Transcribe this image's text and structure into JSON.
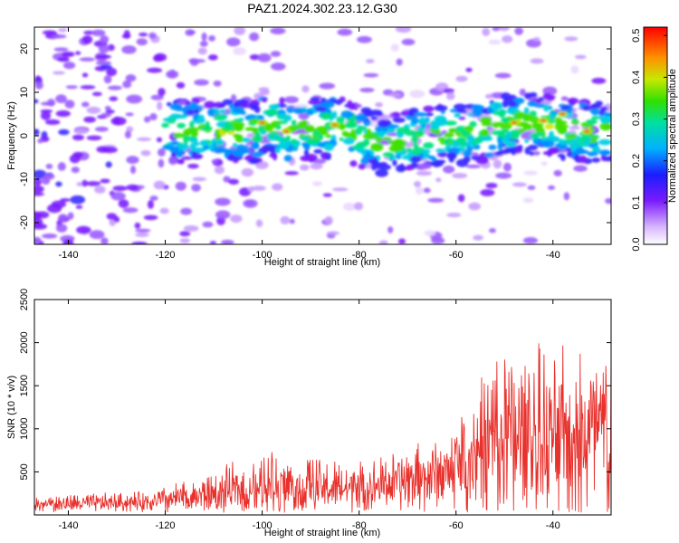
{
  "title": "PAZ1.2024.302.23.12.G30",
  "chart_data": [
    {
      "type": "heatmap",
      "xlabel": "Height of straight line (km)",
      "ylabel": "Frequency (Hz)",
      "xlim": [
        -147,
        -28
      ],
      "ylim": [
        -25,
        25
      ],
      "xticks": [
        -140,
        -120,
        -100,
        -80,
        -60,
        -40
      ],
      "yticks": [
        20,
        10,
        0,
        -10,
        -20
      ],
      "colorbar": {
        "label": "Normalized spectral amplitude",
        "range": [
          0.0,
          0.52
        ],
        "ticks": [
          0.5,
          0.4,
          0.3,
          0.2,
          0.1,
          0.0
        ]
      },
      "description_points": [
        {
          "x": -100,
          "y": 3
        },
        {
          "x": -95,
          "y": 1
        },
        {
          "x": -85,
          "y": 2
        },
        {
          "x": -75,
          "y": -2
        },
        {
          "x": -65,
          "y": 0
        },
        {
          "x": -55,
          "y": 1
        },
        {
          "x": -48,
          "y": 3
        },
        {
          "x": -40,
          "y": 2
        },
        {
          "x": -32,
          "y": 1
        }
      ]
    },
    {
      "type": "line",
      "xlabel": "Height of straight line (km)",
      "ylabel": "SNR (10 * v/v)",
      "xlim": [
        -147,
        -28
      ],
      "ylim": [
        0,
        2500
      ],
      "xticks": [
        -140,
        -120,
        -100,
        -80,
        -60,
        -40
      ],
      "yticks": [
        2500,
        2000,
        1500,
        1000,
        500
      ],
      "color": "#e8312c",
      "envelope": [
        {
          "x": -147,
          "base": 120,
          "amp": 120
        },
        {
          "x": -125,
          "base": 150,
          "amp": 140
        },
        {
          "x": -115,
          "base": 200,
          "amp": 250
        },
        {
          "x": -105,
          "base": 300,
          "amp": 350
        },
        {
          "x": -98,
          "base": 350,
          "amp": 500
        },
        {
          "x": -90,
          "base": 320,
          "amp": 400
        },
        {
          "x": -80,
          "base": 300,
          "amp": 350
        },
        {
          "x": -70,
          "base": 400,
          "amp": 450
        },
        {
          "x": -62,
          "base": 500,
          "amp": 500
        },
        {
          "x": -55,
          "base": 800,
          "amp": 1100
        },
        {
          "x": -48,
          "base": 900,
          "amp": 1300
        },
        {
          "x": -40,
          "base": 850,
          "amp": 1200
        },
        {
          "x": -32,
          "base": 900,
          "amp": 1300
        },
        {
          "x": -28,
          "base": 950,
          "amp": 1500
        }
      ]
    }
  ]
}
